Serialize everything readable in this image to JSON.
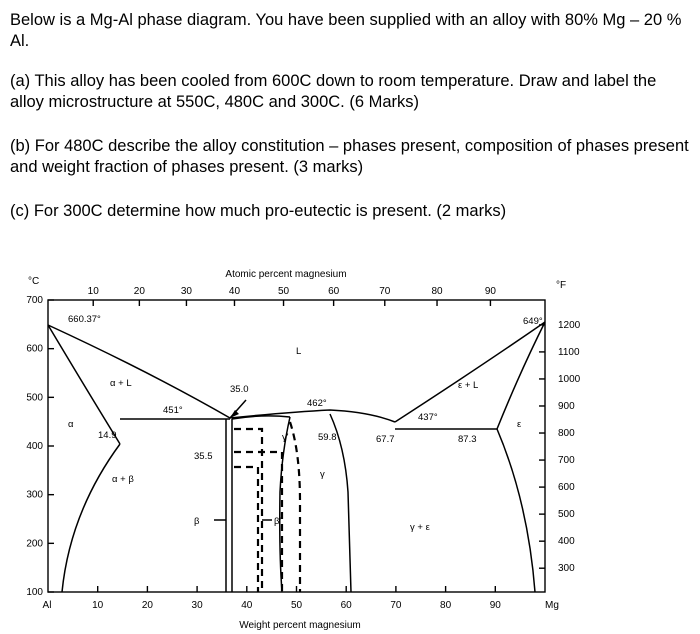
{
  "question": {
    "intro": "Below is a Mg-Al phase diagram. You have been supplied with an alloy with 80% Mg – 20 % Al.",
    "part_a": "(a) This alloy has been cooled from 600C down to room temperature. Draw and label the alloy microstructure at 550C, 480C and 300C. (6 Marks)",
    "part_b": "(b) For 480C describe the alloy constitution – phases present, composition of phases present and weight fraction of phases present. (3 marks)",
    "part_c": "(c) For 300C determine how much pro-eutectic is present. (2 marks)"
  },
  "diagram": {
    "unit_c": "°C",
    "unit_f": "°F",
    "top_axis_title": "Atomic percent magnesium",
    "bottom_axis_title": "Weight percent magnesium",
    "top_ticks": [
      "10",
      "20",
      "30",
      "40",
      "50",
      "60",
      "70",
      "80",
      "90"
    ],
    "bottom_ticks": [
      "10",
      "20",
      "30",
      "40",
      "50",
      "60",
      "70",
      "80",
      "90"
    ],
    "left_end": "Al",
    "right_end": "Mg",
    "celsius_ticks": [
      "700",
      "600",
      "500",
      "400",
      "300",
      "200",
      "100"
    ],
    "fahrenheit_ticks": [
      "1200",
      "1100",
      "1000",
      "900",
      "800",
      "700",
      "600",
      "500",
      "400",
      "300"
    ],
    "point_al_melt": "660.37°",
    "point_mg_melt": "649°",
    "liquid": "L",
    "alpha_l": "α + L",
    "eps_l": "ε + L",
    "alpha": "α",
    "epsilon": "ε",
    "alpha_beta": "α + β",
    "gamma_eps": "γ + ε",
    "gamma": "γ",
    "gamma_prime": "γ'",
    "beta": "β",
    "beta_prime": "β'",
    "t451": "451°",
    "t462": "462°",
    "t437": "437°",
    "c35_0": "35.0",
    "c14_9": "14.9",
    "c35_5": "35.5",
    "c59_8": "59.8",
    "c67_7": "67.7",
    "c87_3": "87.3"
  }
}
